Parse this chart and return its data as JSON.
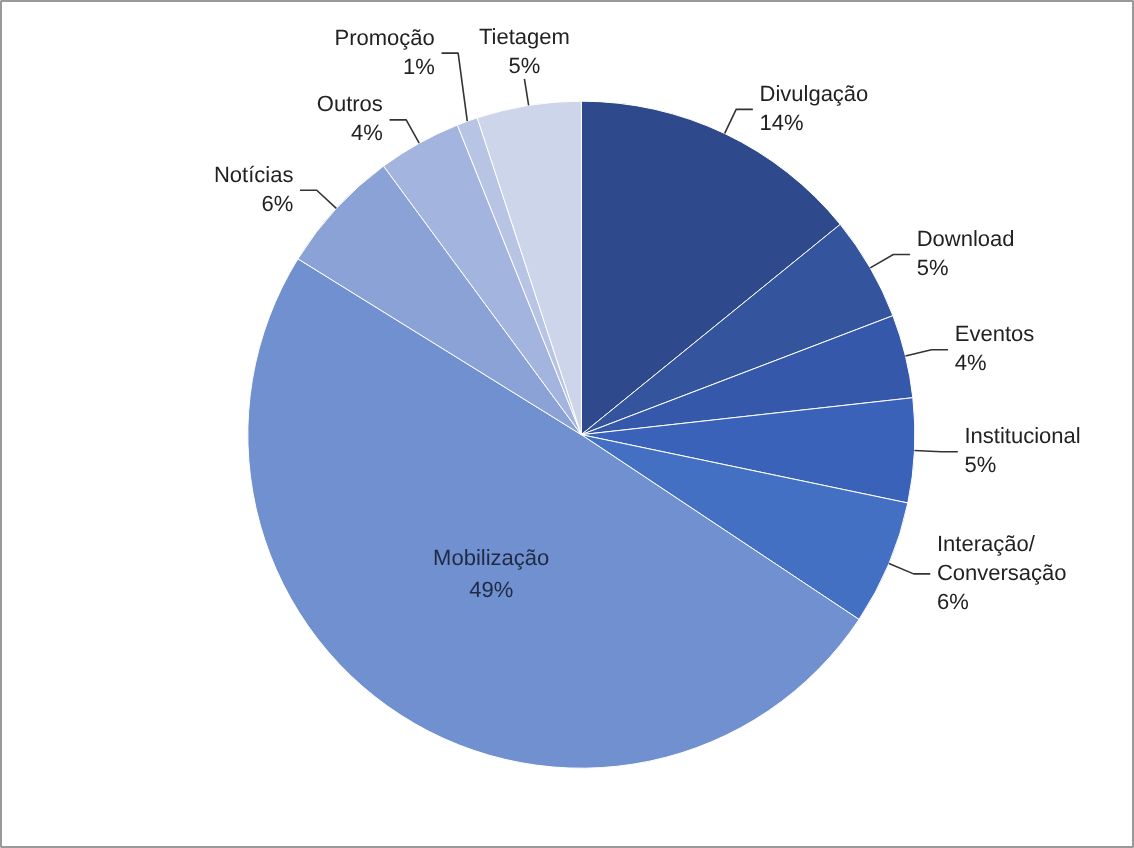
{
  "chart_data": {
    "type": "pie",
    "categories": [
      "Divulgação",
      "Download",
      "Eventos",
      "Institucional",
      "Interação/\nConversação",
      "Mobilização",
      "Notícias",
      "Outros",
      "Promoção",
      "Tietagem"
    ],
    "values": [
      14,
      5,
      4,
      5,
      6,
      49,
      6,
      4,
      1,
      5
    ],
    "value_labels": [
      "14%",
      "5%",
      "4%",
      "5%",
      "6%",
      "49%",
      "6%",
      "4%",
      "1%",
      "5%"
    ],
    "colors": [
      "#2e4a8c",
      "#34559e",
      "#3558ab",
      "#3a62b8",
      "#4470c4",
      "#7190d0",
      "#8aa2d6",
      "#a3b4de",
      "#b8c4e4",
      "#cdd5ea"
    ]
  }
}
